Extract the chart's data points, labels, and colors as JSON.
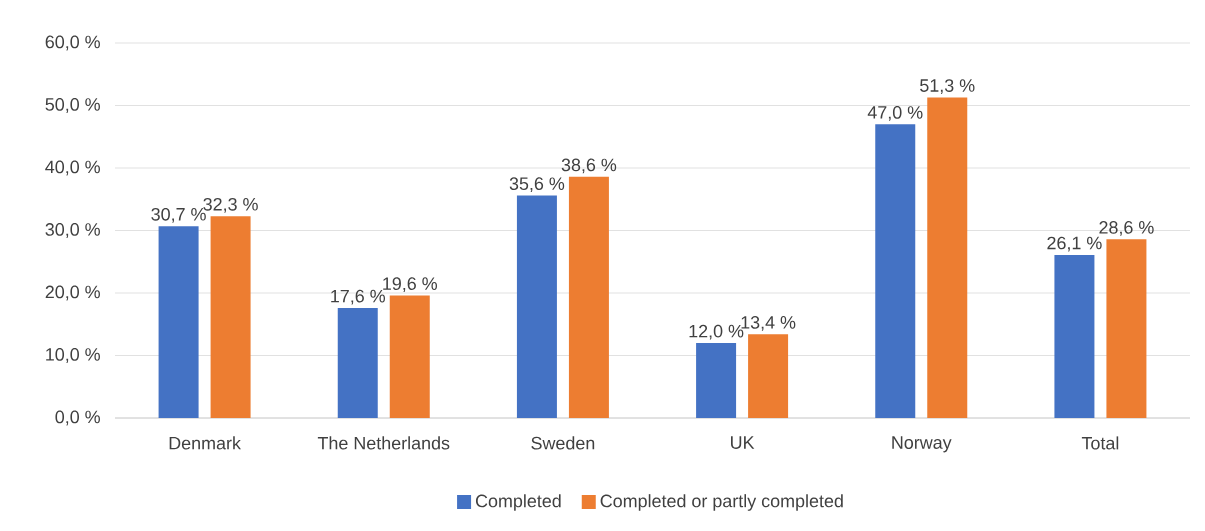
{
  "chart_data": {
    "type": "bar",
    "categories": [
      "Denmark",
      "The Netherlands",
      "Sweden",
      "UK",
      "Norway",
      "Total"
    ],
    "series": [
      {
        "name": "Completed",
        "color": "#4472c4",
        "values": [
          30.7,
          17.6,
          35.6,
          12.0,
          47.0,
          26.1
        ],
        "value_labels": [
          "30,7 %",
          "17,6 %",
          "35,6 %",
          "12,0 %",
          "47,0 %",
          "26,1 %"
        ]
      },
      {
        "name": "Completed or partly completed",
        "color": "#ed7d31",
        "values": [
          32.3,
          19.6,
          38.6,
          13.4,
          51.3,
          28.6
        ],
        "value_labels": [
          "32,3 %",
          "19,6 %",
          "38,6 %",
          "13,4 %",
          "51,3 %",
          "28,6 %"
        ]
      }
    ],
    "ylim": [
      0,
      60
    ],
    "yticks": [
      {
        "value": 0,
        "label": "0,0 %"
      },
      {
        "value": 10,
        "label": "10,0 %"
      },
      {
        "value": 20,
        "label": "20,0 %"
      },
      {
        "value": 30,
        "label": "30,0 %"
      },
      {
        "value": 40,
        "label": "40,0 %"
      },
      {
        "value": 50,
        "label": "50,0 %"
      },
      {
        "value": 60,
        "label": "60,0 %"
      }
    ],
    "grid": "y",
    "legend": "bottom"
  }
}
